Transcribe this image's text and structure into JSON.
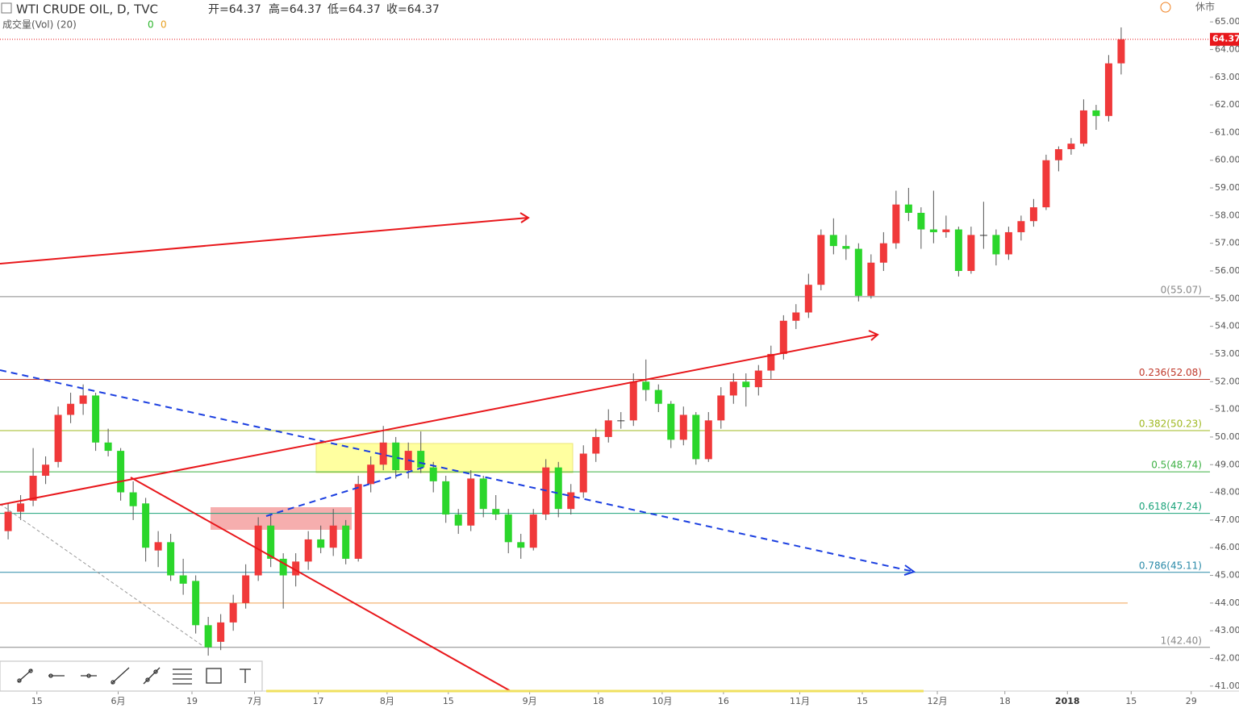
{
  "header": {
    "symbol": "WTI CRUDE OIL, D, TVC",
    "ohlc": [
      "开=64.37",
      "高=64.37",
      "低=64.37",
      "收=64.37"
    ],
    "volume_label": "成交量(Vol) (20)",
    "volume_values": [
      0,
      0
    ],
    "status": "休市"
  },
  "chart_data": {
    "type": "candlestick",
    "up_color": "#f0393a",
    "down_color": "#2bd62b",
    "last_price": 64.37,
    "xlim": [
      -0.65,
      96.1
    ],
    "ylim": [
      40.82,
      65.79
    ],
    "xticks": [
      {
        "value": 2.3,
        "label": "15"
      },
      {
        "value": 8.8,
        "label": "6月"
      },
      {
        "value": 14.7,
        "label": "19"
      },
      {
        "value": 19.7,
        "label": "7月"
      },
      {
        "value": 24.8,
        "label": "17"
      },
      {
        "value": 30.3,
        "label": "8月"
      },
      {
        "value": 35.2,
        "label": "15"
      },
      {
        "value": 41.7,
        "label": "9月"
      },
      {
        "value": 47.2,
        "label": "18"
      },
      {
        "value": 52.3,
        "label": "10月"
      },
      {
        "value": 57.2,
        "label": "16"
      },
      {
        "value": 63.3,
        "label": "11月"
      },
      {
        "value": 68.3,
        "label": "15"
      },
      {
        "value": 74.3,
        "label": "12月"
      },
      {
        "value": 79.7,
        "label": "18"
      },
      {
        "value": 84.7,
        "label": "2018"
      },
      {
        "value": 89.8,
        "label": "15"
      },
      {
        "value": 94.6,
        "label": "29"
      }
    ],
    "yticks": [
      {
        "value": 41,
        "label": "41.00"
      },
      {
        "value": 42,
        "label": "42.00"
      },
      {
        "value": 43,
        "label": "43.00"
      },
      {
        "value": 44,
        "label": "44.00"
      },
      {
        "value": 45,
        "label": "45.00"
      },
      {
        "value": 46,
        "label": "46.00"
      },
      {
        "value": 47,
        "label": "47.00"
      },
      {
        "value": 48,
        "label": "48.00"
      },
      {
        "value": 49,
        "label": "49.00"
      },
      {
        "value": 50,
        "label": "50.00"
      },
      {
        "value": 51,
        "label": "51.00"
      },
      {
        "value": 52,
        "label": "52.00"
      },
      {
        "value": 53,
        "label": "53.00"
      },
      {
        "value": 54,
        "label": "54.00"
      },
      {
        "value": 55,
        "label": "55.00"
      },
      {
        "value": 56,
        "label": "56.00"
      },
      {
        "value": 57,
        "label": "57.00"
      },
      {
        "value": 58,
        "label": "58.00"
      },
      {
        "value": 59,
        "label": "59.00"
      },
      {
        "value": 60,
        "label": "60.00"
      },
      {
        "value": 61,
        "label": "61.00"
      },
      {
        "value": 62,
        "label": "62.00"
      },
      {
        "value": 63,
        "label": "63.00"
      },
      {
        "value": 64,
        "label": "64.00"
      },
      {
        "value": 65,
        "label": "65.00"
      }
    ],
    "fib_levels": [
      {
        "label": "0(55.07)",
        "value": 55.07,
        "color": "#888888"
      },
      {
        "label": "0.236(52.08)",
        "value": 52.08,
        "color": "#c0392b"
      },
      {
        "label": "0.382(50.23)",
        "value": 50.23,
        "color": "#9fb81f"
      },
      {
        "label": "0.5(48.74)",
        "value": 48.74,
        "color": "#3cb043"
      },
      {
        "label": "0.618(47.24)",
        "value": 47.24,
        "color": "#1aa37a"
      },
      {
        "label": "0.786(45.11)",
        "value": 45.11,
        "color": "#2a8aa8"
      },
      {
        "label": "1(42.40)",
        "value": 42.4,
        "color": "#888888"
      }
    ],
    "levels": [
      {
        "value": 44,
        "color": "#f0a050"
      }
    ],
    "candles": [
      [
        46.6,
        47.6,
        46.3,
        47.3
      ],
      [
        47.3,
        47.9,
        47.0,
        47.6
      ],
      [
        47.7,
        49.6,
        47.5,
        48.6
      ],
      [
        48.6,
        49.3,
        48.3,
        49.0
      ],
      [
        49.1,
        51.1,
        48.9,
        50.8
      ],
      [
        50.8,
        51.6,
        50.5,
        51.2
      ],
      [
        51.2,
        51.9,
        50.8,
        51.5
      ],
      [
        51.5,
        51.6,
        49.5,
        49.8
      ],
      [
        49.8,
        50.3,
        49.3,
        49.5
      ],
      [
        49.5,
        49.6,
        47.7,
        48.0
      ],
      [
        48.0,
        48.4,
        47.0,
        47.5
      ],
      [
        47.6,
        47.8,
        45.5,
        46.0
      ],
      [
        45.9,
        46.6,
        45.3,
        46.2
      ],
      [
        46.2,
        46.5,
        44.8,
        45.0
      ],
      [
        45.0,
        45.6,
        44.3,
        44.7
      ],
      [
        44.8,
        45.0,
        42.9,
        43.2
      ],
      [
        43.2,
        43.5,
        42.1,
        42.4
      ],
      [
        42.6,
        43.6,
        42.3,
        43.3
      ],
      [
        43.3,
        44.3,
        43.0,
        44.0
      ],
      [
        44.0,
        45.4,
        43.8,
        45.0
      ],
      [
        45.0,
        47.1,
        44.8,
        46.8
      ],
      [
        46.8,
        47.2,
        45.3,
        45.6
      ],
      [
        45.6,
        45.8,
        43.8,
        45.0
      ],
      [
        45.0,
        45.8,
        44.6,
        45.5
      ],
      [
        45.5,
        46.6,
        45.2,
        46.3
      ],
      [
        46.3,
        46.8,
        45.8,
        46.0
      ],
      [
        46.0,
        47.4,
        45.7,
        46.8
      ],
      [
        46.8,
        47.0,
        45.4,
        45.6
      ],
      [
        45.6,
        48.6,
        45.5,
        48.3
      ],
      [
        48.3,
        49.3,
        48.0,
        49.0
      ],
      [
        49.0,
        50.4,
        48.8,
        49.8
      ],
      [
        49.8,
        50.0,
        48.5,
        48.8
      ],
      [
        48.8,
        49.8,
        48.5,
        49.5
      ],
      [
        49.5,
        50.2,
        48.7,
        48.9
      ],
      [
        48.9,
        49.1,
        48.0,
        48.4
      ],
      [
        48.4,
        48.6,
        46.9,
        47.2
      ],
      [
        47.2,
        47.4,
        46.5,
        46.8
      ],
      [
        46.8,
        48.8,
        46.6,
        48.5
      ],
      [
        48.5,
        48.6,
        47.1,
        47.4
      ],
      [
        47.4,
        47.9,
        47.0,
        47.2
      ],
      [
        47.2,
        47.4,
        45.8,
        46.2
      ],
      [
        46.2,
        46.5,
        45.6,
        46.0
      ],
      [
        46.0,
        47.4,
        45.9,
        47.2
      ],
      [
        47.2,
        49.2,
        47.0,
        48.9
      ],
      [
        48.9,
        49.1,
        47.1,
        47.4
      ],
      [
        47.4,
        48.3,
        47.2,
        48.0
      ],
      [
        48.0,
        49.7,
        47.8,
        49.4
      ],
      [
        49.4,
        50.3,
        49.1,
        50.0
      ],
      [
        50.0,
        51.0,
        49.8,
        50.6
      ],
      [
        50.6,
        50.9,
        50.3,
        50.6
      ],
      [
        50.6,
        52.3,
        50.4,
        52.0
      ],
      [
        52.0,
        52.8,
        51.3,
        51.7
      ],
      [
        51.7,
        51.9,
        50.9,
        51.2
      ],
      [
        51.2,
        51.3,
        49.6,
        49.9
      ],
      [
        49.9,
        51.1,
        49.7,
        50.8
      ],
      [
        50.8,
        50.9,
        49.0,
        49.2
      ],
      [
        49.2,
        50.9,
        49.1,
        50.6
      ],
      [
        50.6,
        51.8,
        50.3,
        51.5
      ],
      [
        51.5,
        52.3,
        51.2,
        52.0
      ],
      [
        52.0,
        52.3,
        51.1,
        51.8
      ],
      [
        51.8,
        52.6,
        51.5,
        52.4
      ],
      [
        52.4,
        53.3,
        52.1,
        53.0
      ],
      [
        53.0,
        54.4,
        52.8,
        54.2
      ],
      [
        54.2,
        54.8,
        53.9,
        54.5
      ],
      [
        54.5,
        55.9,
        54.3,
        55.5
      ],
      [
        55.5,
        57.5,
        55.3,
        57.3
      ],
      [
        57.3,
        57.9,
        56.6,
        56.9
      ],
      [
        56.9,
        57.3,
        56.4,
        56.8
      ],
      [
        56.8,
        57.0,
        54.9,
        55.1
      ],
      [
        55.1,
        56.6,
        55.0,
        56.3
      ],
      [
        56.3,
        57.4,
        56.0,
        57.0
      ],
      [
        57.0,
        58.9,
        56.8,
        58.4
      ],
      [
        58.4,
        59.0,
        57.8,
        58.1
      ],
      [
        58.1,
        58.3,
        56.8,
        57.5
      ],
      [
        57.5,
        58.9,
        57.0,
        57.4
      ],
      [
        57.4,
        58.0,
        57.2,
        57.5
      ],
      [
        57.5,
        57.6,
        55.8,
        56.0
      ],
      [
        56.0,
        57.6,
        55.9,
        57.3
      ],
      [
        57.3,
        58.5,
        56.8,
        57.3
      ],
      [
        57.3,
        57.5,
        56.2,
        56.6
      ],
      [
        56.6,
        57.6,
        56.4,
        57.4
      ],
      [
        57.4,
        58.0,
        57.1,
        57.8
      ],
      [
        57.8,
        58.6,
        57.6,
        58.3
      ],
      [
        58.3,
        60.2,
        58.2,
        60.0
      ],
      [
        60.0,
        60.5,
        59.6,
        60.4
      ],
      [
        60.4,
        60.8,
        60.2,
        60.6
      ],
      [
        60.6,
        62.2,
        60.5,
        61.8
      ],
      [
        61.8,
        62.0,
        61.1,
        61.6
      ],
      [
        61.6,
        63.8,
        61.4,
        63.5
      ],
      [
        63.5,
        64.8,
        63.1,
        64.37
      ]
    ]
  }
}
